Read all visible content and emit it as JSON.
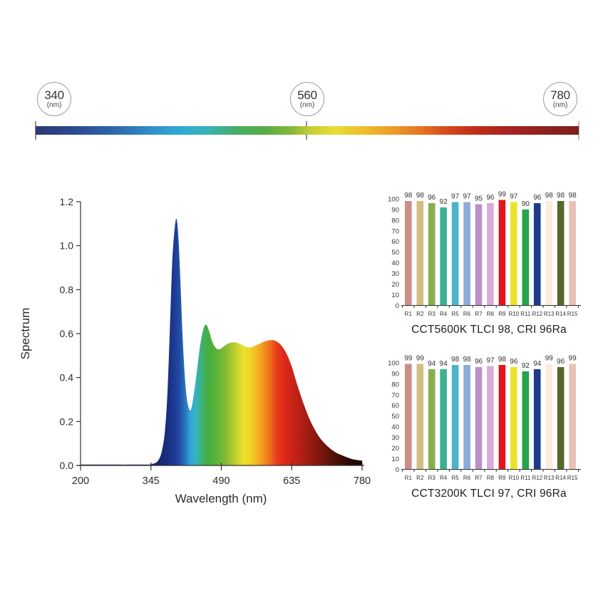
{
  "scale_bar": {
    "markers": [
      {
        "value": "340",
        "unit": "(nm)"
      },
      {
        "value": "560",
        "unit": "(nm)"
      },
      {
        "value": "780",
        "unit": "(nm)"
      }
    ],
    "gradient_stops": [
      {
        "offset": 0,
        "color": "#2b3b72"
      },
      {
        "offset": 7,
        "color": "#2d4a8e"
      },
      {
        "offset": 14,
        "color": "#2e64a8"
      },
      {
        "offset": 21,
        "color": "#2e8ec6"
      },
      {
        "offset": 27,
        "color": "#31abd4"
      },
      {
        "offset": 32,
        "color": "#39b2b2"
      },
      {
        "offset": 37,
        "color": "#47ab62"
      },
      {
        "offset": 42,
        "color": "#55aa46"
      },
      {
        "offset": 47,
        "color": "#85b73c"
      },
      {
        "offset": 51,
        "color": "#c9d036"
      },
      {
        "offset": 55,
        "color": "#e8dc33"
      },
      {
        "offset": 60,
        "color": "#edc02e"
      },
      {
        "offset": 66,
        "color": "#ec9b27"
      },
      {
        "offset": 71,
        "color": "#e47221"
      },
      {
        "offset": 76,
        "color": "#d3481d"
      },
      {
        "offset": 81,
        "color": "#c02c1a"
      },
      {
        "offset": 87,
        "color": "#a62320"
      },
      {
        "offset": 94,
        "color": "#8e211f"
      },
      {
        "offset": 100,
        "color": "#7e1e1d"
      }
    ]
  },
  "chart_data": [
    {
      "type": "area",
      "title": "",
      "xlabel": "Wavelength (nm)",
      "ylabel": "Spectrum",
      "xlim": [
        200,
        780
      ],
      "ylim": [
        0,
        1.2
      ],
      "xticks": [
        200,
        345,
        490,
        635,
        780
      ],
      "yticks": [
        0.0,
        0.2,
        0.4,
        0.6,
        0.8,
        1.0,
        1.2
      ],
      "grid": false,
      "legend": false,
      "points": [
        [
          200,
          0.004
        ],
        [
          330,
          0.004
        ],
        [
          345,
          0.006
        ],
        [
          355,
          0.012
        ],
        [
          362,
          0.03
        ],
        [
          368,
          0.07
        ],
        [
          374,
          0.16
        ],
        [
          379,
          0.33
        ],
        [
          384,
          0.62
        ],
        [
          389,
          0.93
        ],
        [
          394,
          1.08
        ],
        [
          398,
          1.12
        ],
        [
          402,
          1.02
        ],
        [
          406,
          0.82
        ],
        [
          410,
          0.6
        ],
        [
          415,
          0.4
        ],
        [
          420,
          0.29
        ],
        [
          426,
          0.25
        ],
        [
          431,
          0.29
        ],
        [
          438,
          0.4
        ],
        [
          446,
          0.54
        ],
        [
          453,
          0.62
        ],
        [
          459,
          0.64
        ],
        [
          465,
          0.61
        ],
        [
          472,
          0.56
        ],
        [
          480,
          0.532
        ],
        [
          488,
          0.53
        ],
        [
          497,
          0.545
        ],
        [
          508,
          0.558
        ],
        [
          518,
          0.56
        ],
        [
          528,
          0.553
        ],
        [
          538,
          0.543
        ],
        [
          548,
          0.537
        ],
        [
          558,
          0.543
        ],
        [
          568,
          0.553
        ],
        [
          580,
          0.565
        ],
        [
          592,
          0.57
        ],
        [
          600,
          0.568
        ],
        [
          612,
          0.55
        ],
        [
          624,
          0.51
        ],
        [
          635,
          0.45
        ],
        [
          646,
          0.37
        ],
        [
          658,
          0.29
        ],
        [
          670,
          0.22
        ],
        [
          682,
          0.165
        ],
        [
          695,
          0.12
        ],
        [
          710,
          0.085
        ],
        [
          725,
          0.06
        ],
        [
          740,
          0.045
        ],
        [
          755,
          0.032
        ],
        [
          768,
          0.025
        ],
        [
          780,
          0.022
        ]
      ],
      "fill_gradient": [
        {
          "offset": 0,
          "color": "#101f5c"
        },
        {
          "offset": 27,
          "color": "#14246b"
        },
        {
          "offset": 31,
          "color": "#19307f"
        },
        {
          "offset": 33.5,
          "color": "#1d3c96"
        },
        {
          "offset": 35.5,
          "color": "#2252a8"
        },
        {
          "offset": 37.5,
          "color": "#2a7ec2"
        },
        {
          "offset": 39,
          "color": "#2fa6d8"
        },
        {
          "offset": 41,
          "color": "#35b4c0"
        },
        {
          "offset": 43,
          "color": "#3db079"
        },
        {
          "offset": 45,
          "color": "#44ae42"
        },
        {
          "offset": 48.5,
          "color": "#5db338"
        },
        {
          "offset": 52,
          "color": "#8cbd34"
        },
        {
          "offset": 55,
          "color": "#c2cf30"
        },
        {
          "offset": 58,
          "color": "#ece22a"
        },
        {
          "offset": 61,
          "color": "#f2cb26"
        },
        {
          "offset": 64,
          "color": "#f4a321"
        },
        {
          "offset": 67,
          "color": "#f0741e"
        },
        {
          "offset": 69.5,
          "color": "#e8401c"
        },
        {
          "offset": 72,
          "color": "#e02a1b"
        },
        {
          "offset": 76,
          "color": "#c62218"
        },
        {
          "offset": 80,
          "color": "#a51d13"
        },
        {
          "offset": 85,
          "color": "#7e170d"
        },
        {
          "offset": 90,
          "color": "#521107"
        },
        {
          "offset": 95,
          "color": "#2c0a04"
        },
        {
          "offset": 100,
          "color": "#170502"
        }
      ]
    },
    {
      "type": "bar",
      "title": "CCT5600K TLCI 98, CRI 96Ra",
      "categories": [
        "R1",
        "R2",
        "R3",
        "R4",
        "R5",
        "R6",
        "R7",
        "R8",
        "R9",
        "R10",
        "R11",
        "R12",
        "R13",
        "R14",
        "R15"
      ],
      "values": [
        98,
        98,
        96,
        92,
        97,
        97,
        95,
        96,
        99,
        97,
        90,
        96,
        98,
        98,
        98
      ],
      "bar_colors": [
        "#cb8e88",
        "#d5bc83",
        "#8aad49",
        "#3bb093",
        "#4bb4cb",
        "#8cacd9",
        "#bc90c7",
        "#d9aad8",
        "#e0151e",
        "#ebe32b",
        "#23a44d",
        "#1d3a8c",
        "#fbecdf",
        "#55682a",
        "#e9c1b4"
      ],
      "yticks": [
        0,
        10,
        20,
        30,
        40,
        50,
        60,
        70,
        80,
        90,
        100
      ],
      "ylim": [
        0,
        100
      ],
      "grid": false,
      "legend": false
    },
    {
      "type": "bar",
      "title": "CCT3200K TLCI 97, CRI 96Ra",
      "categories": [
        "R1",
        "R2",
        "R3",
        "R4",
        "R5",
        "R6",
        "R7",
        "R8",
        "R9",
        "R10",
        "R11",
        "R12",
        "R13",
        "R14",
        "R15"
      ],
      "values": [
        99,
        99,
        94,
        94,
        98,
        98,
        96,
        97,
        98,
        96,
        92,
        94,
        99,
        96,
        99
      ],
      "bar_colors": [
        "#cb8e88",
        "#d5bc83",
        "#8aad49",
        "#3bb093",
        "#4bb4cb",
        "#8cacd9",
        "#bc90c7",
        "#d9aad8",
        "#e0151e",
        "#ebe32b",
        "#23a44d",
        "#1d3a8c",
        "#fbecdf",
        "#55682a",
        "#e9c1b4"
      ],
      "yticks": [
        0,
        10,
        20,
        30,
        40,
        50,
        60,
        70,
        80,
        90,
        100
      ],
      "ylim": [
        0,
        100
      ],
      "grid": false,
      "legend": false
    }
  ]
}
